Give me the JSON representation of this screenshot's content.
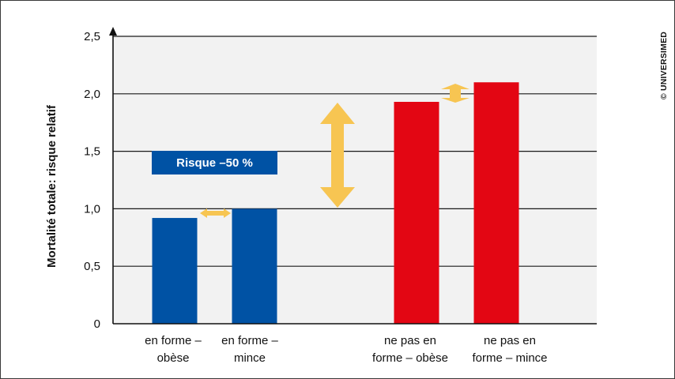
{
  "chart_data": {
    "type": "bar",
    "categories": [
      [
        "en forme –",
        "obèse"
      ],
      [
        "en forme –",
        "mince"
      ],
      [
        "ne pas en",
        "forme – obèse"
      ],
      [
        "ne pas en",
        "forme – mince"
      ]
    ],
    "values": [
      0.92,
      1.0,
      1.93,
      2.1
    ],
    "bar_colors": [
      "#0052a4",
      "#0052a4",
      "#e30613",
      "#e30613"
    ],
    "ylabel": "Mortalité totale: risque relatif",
    "ylim": [
      0,
      2.5
    ],
    "yticks": [
      0,
      0.5,
      1.0,
      1.5,
      2.0,
      2.5
    ],
    "ytick_labels": [
      "0",
      "0,5",
      "1,0",
      "1,5",
      "2,0",
      "2,5"
    ],
    "grid": true,
    "annotation": "Risque –50 %",
    "annotation_color": "#0052a4",
    "arrow_color": "#f7c552",
    "plot_background": "#f2f2f2",
    "credit": "© UNIVERSIMED"
  }
}
